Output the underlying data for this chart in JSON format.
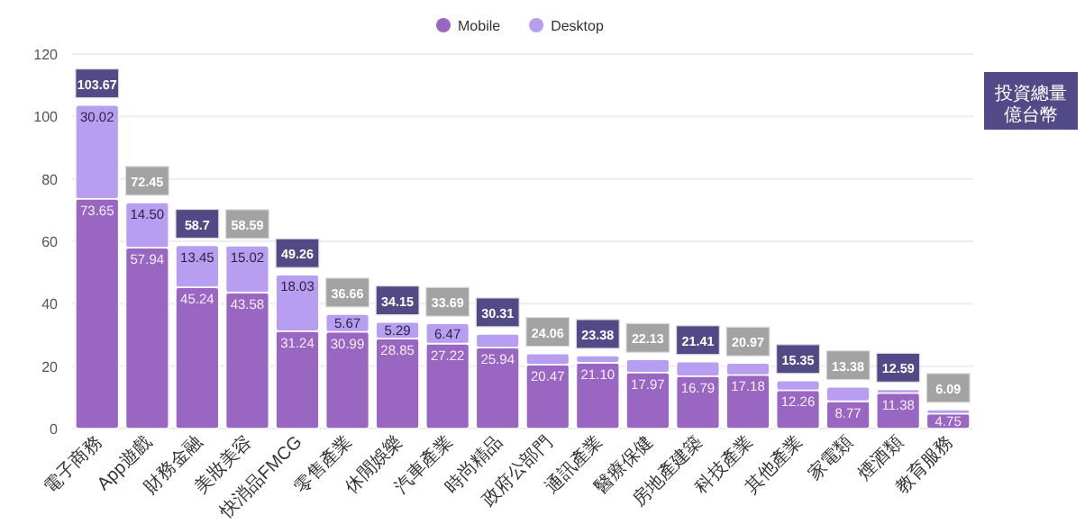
{
  "chart_data": {
    "type": "bar",
    "stacked": true,
    "categories": [
      "電子商務",
      "App遊戲",
      "財務金融",
      "美妝美容",
      "快消品FMCG",
      "零售產業",
      "休閒娛樂",
      "汽車產業",
      "時尚精品",
      "政府公部門",
      "通訊產業",
      "醫療保健",
      "房地產建築",
      "科技產業",
      "其他產業",
      "家電類",
      "煙酒類",
      "教育服務"
    ],
    "series": [
      {
        "name": "Mobile",
        "color": "#9966c2",
        "values": [
          73.65,
          57.94,
          45.24,
          43.58,
          31.24,
          30.99,
          28.85,
          27.22,
          25.94,
          20.47,
          21.1,
          17.97,
          16.79,
          17.18,
          12.26,
          8.77,
          11.38,
          4.75
        ],
        "value_labels": [
          "73.65",
          "57.94",
          "45.24",
          "43.58",
          "31.24",
          "30.99",
          "28.85",
          "27.22",
          "25.94",
          "20.47",
          "21.10",
          "17.97",
          "16.79",
          "17.18",
          "12.26",
          "8.77",
          "11.38",
          "4.75"
        ]
      },
      {
        "name": "Desktop",
        "color": "#b89ef0",
        "values": [
          30.02,
          14.5,
          13.45,
          15.02,
          18.03,
          5.67,
          5.29,
          6.47,
          4.37,
          3.59,
          2.28,
          4.16,
          4.62,
          3.79,
          3.09,
          4.61,
          1.21,
          1.34
        ],
        "value_labels": [
          "30.02",
          "14.50",
          "13.45",
          "15.02",
          "18.03",
          "5.67",
          "5.29",
          "6.47",
          null,
          null,
          null,
          null,
          null,
          null,
          null,
          null,
          null,
          null
        ]
      }
    ],
    "totals": [
      "103.67",
      "72.45",
      "58.7",
      "58.59",
      "49.26",
      "36.66",
      "34.15",
      "33.69",
      "30.31",
      "24.06",
      "23.38",
      "22.13",
      "21.41",
      "20.97",
      "15.35",
      "13.38",
      "12.59",
      "6.09"
    ],
    "annotations": [
      "投資總量",
      "億台幣"
    ],
    "ylim": [
      0,
      120
    ],
    "yticks": [
      0,
      20,
      40,
      60,
      80,
      100,
      120
    ],
    "grid": "y",
    "legend": "top"
  }
}
